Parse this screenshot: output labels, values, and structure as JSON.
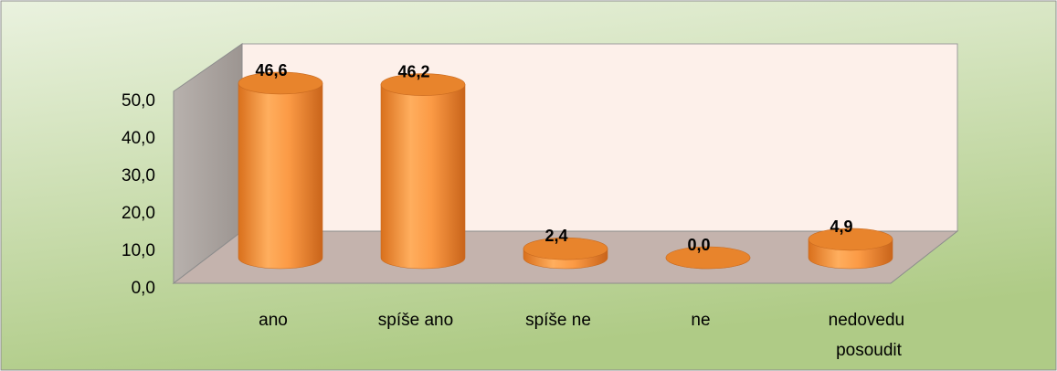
{
  "chart_data": {
    "type": "bar3d-cylinder",
    "categories": [
      "ano",
      "spíše ano",
      "spíše ne",
      "ne",
      "nedovedu posoudit"
    ],
    "values": [
      46.6,
      46.2,
      2.4,
      0.0,
      4.9
    ],
    "value_labels": [
      "46,6",
      "46,2",
      "2,4",
      "0,0",
      "4,9"
    ],
    "color": "#f0892e",
    "ylim": [
      0,
      50
    ],
    "yticks": [
      {
        "value": 0,
        "label": "0,0"
      },
      {
        "value": 10,
        "label": "10,0"
      },
      {
        "value": 20,
        "label": "20,0"
      },
      {
        "value": 30,
        "label": "30,0"
      },
      {
        "value": 40,
        "label": "40,0"
      },
      {
        "value": 50,
        "label": "50,0"
      }
    ]
  }
}
